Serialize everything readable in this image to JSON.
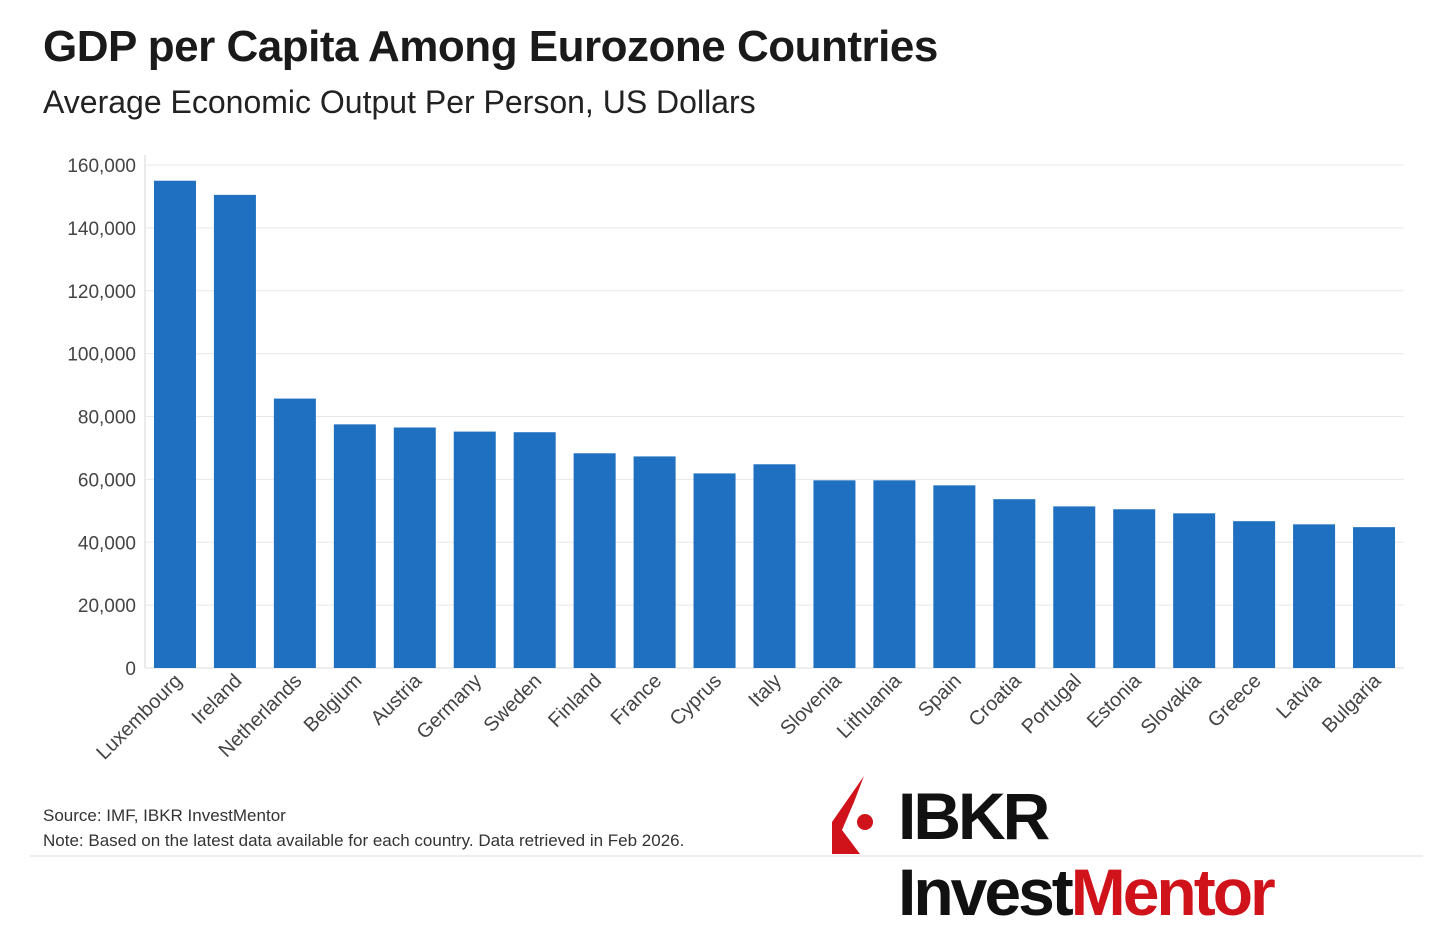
{
  "title": "GDP per Capita Among Eurozone Countries",
  "subtitle": "Average Economic Output Per Person, US Dollars",
  "footer": {
    "source": "Source: IMF, IBKR InvestMentor",
    "note": "Note: Based on the latest data available for each country. Data retrieved in Feb 2026."
  },
  "logo": {
    "text_black": "IBKR Invest",
    "text_red": "Mentor"
  },
  "colors": {
    "bar": "#1f70c1",
    "brand_red": "#d0121b"
  },
  "chart_data": {
    "type": "bar",
    "categories": [
      "Luxembourg",
      "Ireland",
      "Netherlands",
      "Belgium",
      "Austria",
      "Germany",
      "Sweden",
      "Finland",
      "France",
      "Cyprus",
      "Italy",
      "Slovenia",
      "Lithuania",
      "Spain",
      "Croatia",
      "Portugal",
      "Estonia",
      "Slovakia",
      "Greece",
      "Latvia",
      "Bulgaria"
    ],
    "values": [
      155000,
      150500,
      85700,
      77500,
      76500,
      75200,
      75000,
      68300,
      67300,
      61900,
      64800,
      59700,
      59700,
      58100,
      53700,
      51400,
      50500,
      49200,
      46700,
      45700,
      44800
    ],
    "ylim": [
      0,
      160000
    ],
    "yticks": [
      0,
      20000,
      40000,
      60000,
      80000,
      100000,
      120000,
      140000,
      160000
    ],
    "ytick_labels": [
      "0",
      "20,000",
      "40,000",
      "60,000",
      "80,000",
      "100,000",
      "120,000",
      "140,000",
      "160,000"
    ],
    "xlabel": "",
    "ylabel": "",
    "grid": true
  }
}
